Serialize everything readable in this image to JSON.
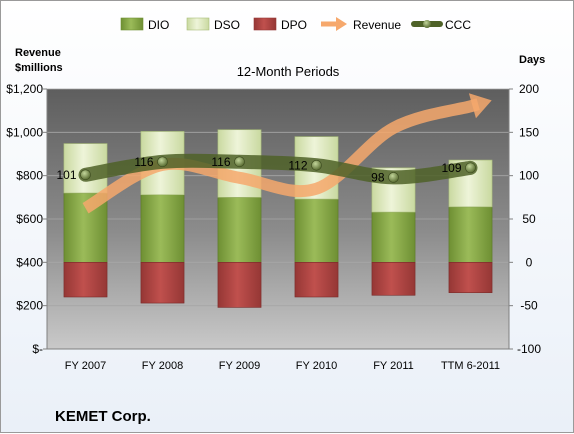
{
  "chart_data": {
    "type": "bar",
    "title": "12-Month Periods",
    "company": "KEMET Corp.",
    "categories": [
      "FY 2007",
      "FY 2008",
      "FY 2009",
      "FY 2010",
      "FY 2011",
      "TTM 6-2011"
    ],
    "left_axis": {
      "label_line1": "Revenue",
      "label_line2": "$millions",
      "ticks": [
        "$-",
        "$200",
        "$400",
        "$600",
        "$800",
        "$1,000",
        "$1,200"
      ],
      "ylim": [
        0,
        1200
      ]
    },
    "right_axis": {
      "label": "Days",
      "ticks": [
        "-100",
        "-50",
        "0",
        "50",
        "100",
        "150",
        "200"
      ],
      "ylim": [
        -100,
        200
      ]
    },
    "legend_placement": "top",
    "legend": [
      {
        "key": "dio",
        "label": "DIO"
      },
      {
        "key": "dso",
        "label": "DSO"
      },
      {
        "key": "dpo",
        "label": "DPO"
      },
      {
        "key": "revenue",
        "label": "Revenue"
      },
      {
        "key": "ccc",
        "label": "CCC"
      }
    ],
    "series": [
      {
        "name": "DIO",
        "axis": "right",
        "values": [
          80,
          78,
          75,
          73,
          58,
          64
        ]
      },
      {
        "name": "DSO",
        "axis": "right",
        "values": [
          57,
          73,
          78,
          72,
          51,
          54
        ]
      },
      {
        "name": "DPO",
        "axis": "right",
        "values": [
          -40,
          -47,
          -52,
          -40,
          -38,
          -35
        ]
      },
      {
        "name": "Revenue",
        "axis": "left",
        "values": [
          650,
          850,
          790,
          740,
          1020,
          1120
        ]
      },
      {
        "name": "CCC",
        "axis": "right",
        "values": [
          101,
          116,
          116,
          112,
          98,
          109
        ]
      }
    ],
    "ccc_labels": [
      "101",
      "116",
      "116",
      "112",
      "98",
      "109"
    ],
    "colors": {
      "dio": "#8db04a",
      "dso": "#e6efc9",
      "dpo": "#c0504d",
      "revenue": "#f6a86c",
      "ccc": "#4f6228",
      "plot_bg": "#7f7f7f"
    }
  }
}
